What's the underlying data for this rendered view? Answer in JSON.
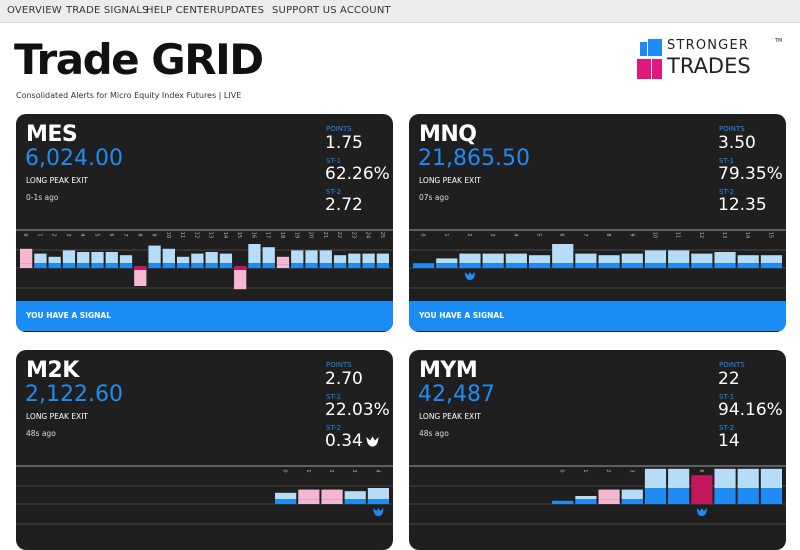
{
  "nav": [
    "OVERVIEW",
    "TRADE SIGNALS",
    "HELP CENTER",
    "UPDATES",
    "SUPPORT US",
    "ACCOUNT"
  ],
  "header": {
    "title": "Trade GRID",
    "subtitle": "Consolidated Alerts for Micro Equity Index Futures | LIVE"
  },
  "logo": {
    "line1": "STRONGER",
    "tm": "TM",
    "line2": "TRADES"
  },
  "colors": {
    "blue": "#1f8cf5",
    "light_blue": "#b7dcf8",
    "pink": "#f4b8d2",
    "magenta": "#c2185b",
    "card_bg": "#1f1f1f"
  },
  "cards": [
    {
      "symbol": "MES",
      "price": "6,024.00",
      "exit": "LONG PEAK EXIT",
      "ago": "0-1s ago",
      "points_label": "POINTS",
      "points": "1.75",
      "st1_label": "ST-1",
      "st1": "62.26%",
      "st2_label": "ST-2",
      "st2": "2.72",
      "signal": "YOU HAVE A SIGNAL",
      "ticks": [
        "0",
        "1",
        "2",
        "3",
        "4",
        "5",
        "6",
        "7",
        "8",
        "9",
        "10",
        "11",
        "12",
        "13",
        "14",
        "15",
        "16",
        "17",
        "18",
        "19",
        "20",
        "21",
        "22",
        "23",
        "24",
        "25"
      ],
      "bars": [
        {
          "u": 0.9,
          "l": 0.3,
          "c": "pink"
        },
        {
          "u": 0.6,
          "l": 0.3,
          "c": "blue"
        },
        {
          "u": 0.4,
          "l": 0.3,
          "c": "blue"
        },
        {
          "u": 0.8,
          "l": 0.3,
          "c": "blue"
        },
        {
          "u": 0.7,
          "l": 0.3,
          "c": "blue"
        },
        {
          "u": 0.7,
          "l": 0.3,
          "c": "blue"
        },
        {
          "u": 0.7,
          "l": 0.3,
          "c": "blue"
        },
        {
          "u": 0.5,
          "l": 0.3,
          "c": "blue"
        },
        {
          "u": 0,
          "l": 1.0,
          "c": "down-pink"
        },
        {
          "u": 1.1,
          "l": 0.3,
          "c": "blue"
        },
        {
          "u": 0.9,
          "l": 0.3,
          "c": "blue"
        },
        {
          "u": 0.4,
          "l": 0.3,
          "c": "blue"
        },
        {
          "u": 0.6,
          "l": 0.3,
          "c": "blue"
        },
        {
          "u": 0.7,
          "l": 0.3,
          "c": "blue"
        },
        {
          "u": 0.6,
          "l": 0.3,
          "c": "blue"
        },
        {
          "u": 0,
          "l": 1.2,
          "c": "down-pink"
        },
        {
          "u": 1.2,
          "l": 0.3,
          "c": "blue"
        },
        {
          "u": 1.0,
          "l": 0.3,
          "c": "blue"
        },
        {
          "u": 0.5,
          "l": 0.2,
          "c": "pink"
        },
        {
          "u": 0.8,
          "l": 0.3,
          "c": "blue"
        },
        {
          "u": 0.8,
          "l": 0.3,
          "c": "blue"
        },
        {
          "u": 0.8,
          "l": 0.3,
          "c": "blue"
        },
        {
          "u": 0.5,
          "l": 0.3,
          "c": "blue"
        },
        {
          "u": 0.6,
          "l": 0.3,
          "c": "blue"
        },
        {
          "u": 0.6,
          "l": 0.3,
          "c": "blue"
        },
        {
          "u": 0.6,
          "l": 0.3,
          "c": "blue"
        }
      ],
      "marker": -1
    },
    {
      "symbol": "MNQ",
      "price": "21,865.50",
      "exit": "LONG PEAK EXIT",
      "ago": "07s ago",
      "points_label": "POINTS",
      "points": "3.50",
      "st1_label": "ST-1",
      "st1": "79.35%",
      "st2_label": "ST-2",
      "st2": "12.35",
      "signal": "YOU HAVE A SIGNAL",
      "ticks": [
        "0",
        "1",
        "2",
        "3",
        "4",
        "5",
        "6",
        "7",
        "8",
        "9",
        "10",
        "11",
        "12",
        "13",
        "14",
        "15"
      ],
      "bars": [
        {
          "u": 0,
          "l": 0.3,
          "c": "blue"
        },
        {
          "u": 0.3,
          "l": 0.3,
          "c": "blue"
        },
        {
          "u": 0.6,
          "l": 0.3,
          "c": "blue"
        },
        {
          "u": 0.6,
          "l": 0.3,
          "c": "blue"
        },
        {
          "u": 0.6,
          "l": 0.3,
          "c": "blue"
        },
        {
          "u": 0.5,
          "l": 0.3,
          "c": "blue"
        },
        {
          "u": 1.2,
          "l": 0.3,
          "c": "blue"
        },
        {
          "u": 0.6,
          "l": 0.3,
          "c": "blue"
        },
        {
          "u": 0.5,
          "l": 0.3,
          "c": "blue"
        },
        {
          "u": 0.6,
          "l": 0.3,
          "c": "blue"
        },
        {
          "u": 0.8,
          "l": 0.3,
          "c": "blue"
        },
        {
          "u": 0.8,
          "l": 0.3,
          "c": "blue"
        },
        {
          "u": 0.6,
          "l": 0.3,
          "c": "blue"
        },
        {
          "u": 0.7,
          "l": 0.3,
          "c": "blue"
        },
        {
          "u": 0.5,
          "l": 0.3,
          "c": "blue"
        },
        {
          "u": 0.5,
          "l": 0.3,
          "c": "blue"
        }
      ],
      "marker": 2
    },
    {
      "symbol": "M2K",
      "price": "2,122.60",
      "exit": "LONG PEAK EXIT",
      "ago": "48s ago",
      "points_label": "POINTS",
      "points": "2.70",
      "st1_label": "ST-1",
      "st1": "22.03%",
      "st2_label": "ST-2",
      "st2": "0.34",
      "st2_badge": true,
      "signal": "",
      "ticks": [
        "0",
        "1",
        "2",
        "3",
        "4"
      ],
      "bars": [
        {
          "u": 0.4,
          "l": 0.3,
          "c": "blue"
        },
        {
          "u": 0.6,
          "l": 0.3,
          "c": "pink"
        },
        {
          "u": 0.6,
          "l": 0.3,
          "c": "pink"
        },
        {
          "u": 0.5,
          "l": 0.3,
          "c": "blue"
        },
        {
          "u": 0.7,
          "l": 0.3,
          "c": "blue"
        }
      ],
      "marker": 4
    },
    {
      "symbol": "MYM",
      "price": "42,487",
      "exit": "LONG PEAK EXIT",
      "ago": "48s ago",
      "points_label": "POINTS",
      "points": "22",
      "st1_label": "ST-1",
      "st1": "94.16%",
      "st2_label": "ST-2",
      "st2": "14",
      "signal": "",
      "ticks": [
        "0",
        "1",
        "2",
        "3",
        "4",
        "5",
        "6",
        "7",
        "8",
        "9"
      ],
      "bars": [
        {
          "u": 0,
          "l": 0.2,
          "c": "blue"
        },
        {
          "u": 0.2,
          "l": 0.3,
          "c": "blue"
        },
        {
          "u": 0.6,
          "l": 0.3,
          "c": "pink"
        },
        {
          "u": 0.6,
          "l": 0.3,
          "c": "blue"
        },
        {
          "u": 1.2,
          "l": 1.0,
          "c": "blue"
        },
        {
          "u": 1.2,
          "l": 1.0,
          "c": "blue"
        },
        {
          "u": 0.8,
          "l": 1.0,
          "c": "magenta"
        },
        {
          "u": 1.2,
          "l": 1.0,
          "c": "blue"
        },
        {
          "u": 1.2,
          "l": 1.0,
          "c": "blue"
        },
        {
          "u": 1.2,
          "l": 1.0,
          "c": "blue"
        }
      ],
      "marker": 6
    }
  ]
}
